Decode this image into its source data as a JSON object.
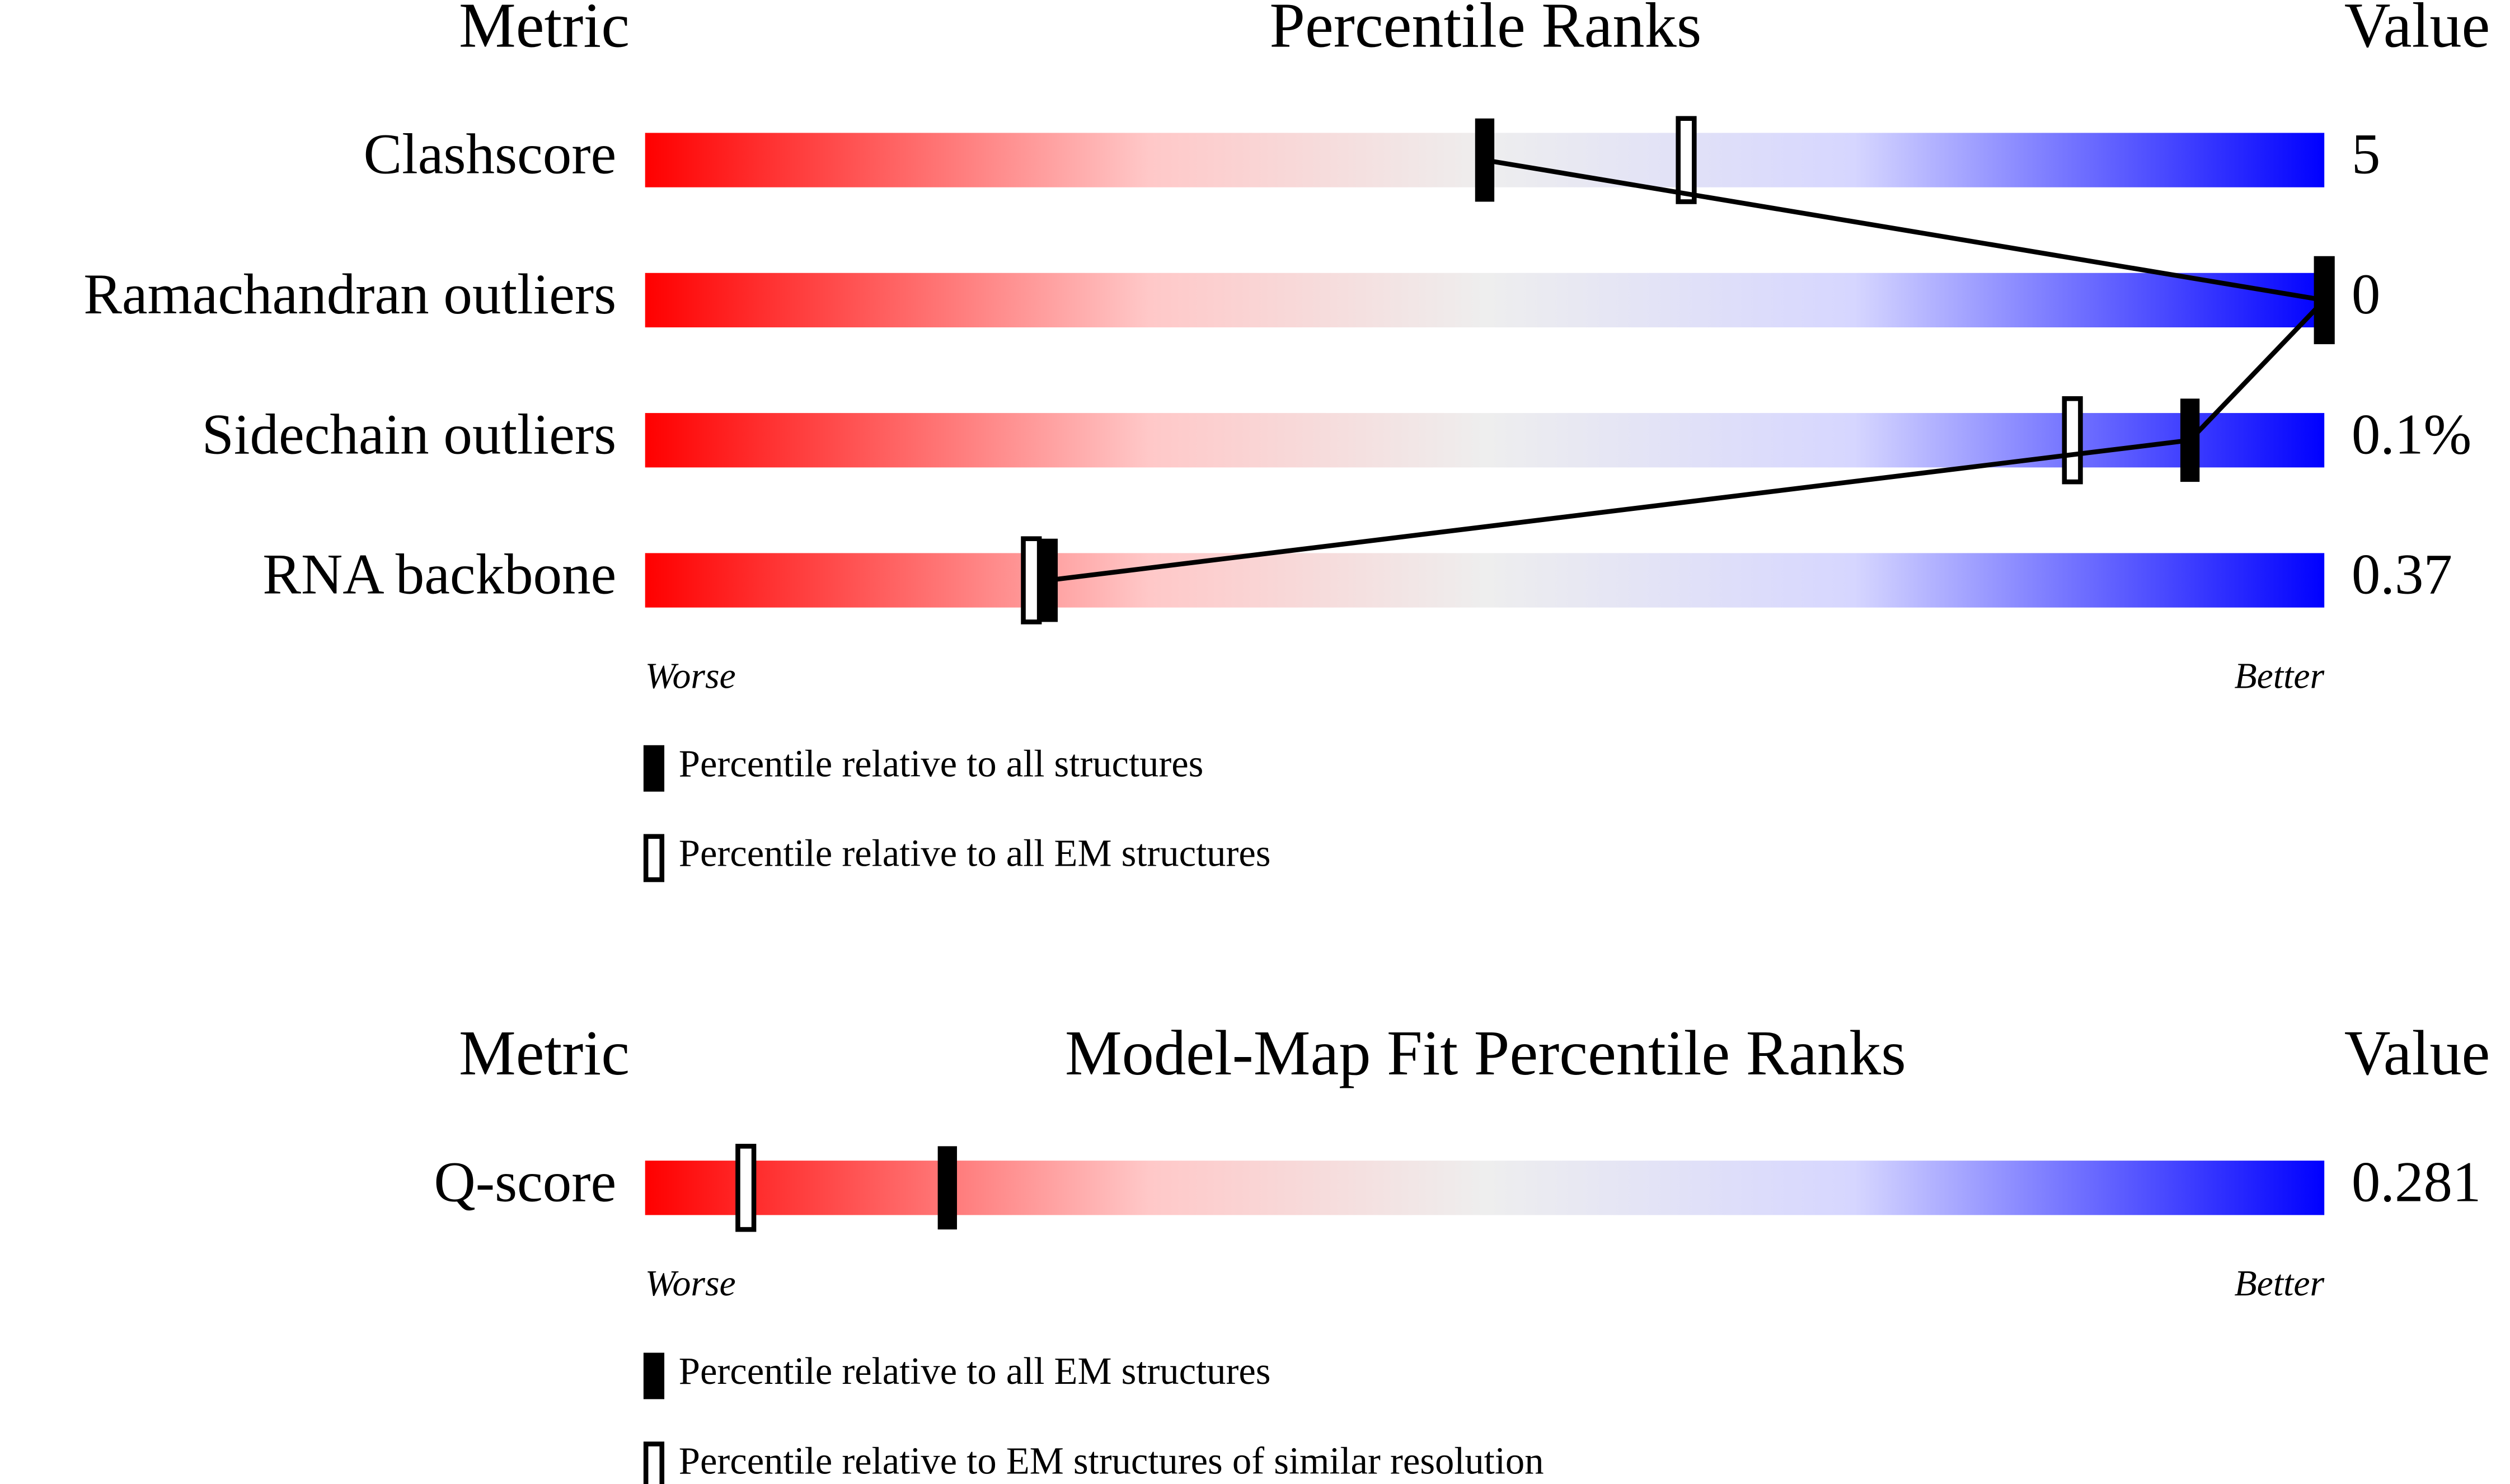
{
  "chart_data": [
    {
      "type": "slider",
      "title": "Percentile Ranks",
      "metric_header": "Metric",
      "value_header": "Value",
      "categories": [
        "Clashscore",
        "Ramachandran outliers",
        "Sidechain outliers",
        "RNA backbone"
      ],
      "metric_values": [
        "5",
        "0",
        "0.1%",
        "0.37"
      ],
      "low_label": "Worse",
      "high_label": "Better",
      "xlim": [
        0,
        100
      ],
      "connect_series": 0,
      "series": [
        {
          "name": "Percentile relative to all structures",
          "color": "#000000",
          "style": "filled",
          "values": [
            50,
            100,
            92,
            24
          ]
        },
        {
          "name": "Percentile relative to all EM structures",
          "color": "#000000",
          "style": "outline",
          "values": [
            62,
            100,
            85,
            23
          ]
        }
      ]
    },
    {
      "type": "slider",
      "title": "Model-Map Fit Percentile Ranks",
      "metric_header": "Metric",
      "value_header": "Value",
      "categories": [
        "Q-score"
      ],
      "metric_values": [
        "0.281"
      ],
      "low_label": "Worse",
      "high_label": "Better",
      "xlim": [
        0,
        100
      ],
      "connect_series": 0,
      "series": [
        {
          "name": "Percentile relative to all EM structures",
          "color": "#000000",
          "style": "filled",
          "values": [
            18
          ]
        },
        {
          "name": "Percentile relative to EM structures of similar resolution",
          "color": "#000000",
          "style": "outline",
          "values": [
            6
          ]
        }
      ]
    }
  ]
}
